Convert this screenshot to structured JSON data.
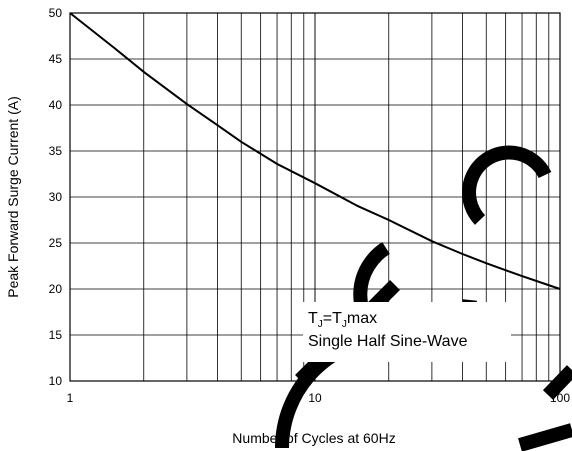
{
  "chart_data": {
    "type": "line",
    "title": "",
    "xlabel": "Number of Cycles at 60Hz",
    "ylabel": "Peak Forward Surge Current (A)",
    "xscale": "log",
    "xlim": [
      1,
      100
    ],
    "ylim": [
      10,
      50
    ],
    "x_ticks": [
      "1",
      "10",
      "100"
    ],
    "y_ticks": [
      "10",
      "15",
      "20",
      "25",
      "30",
      "35",
      "40",
      "45",
      "50"
    ],
    "grid": true,
    "series": [
      {
        "x": [
          1,
          1.5,
          2,
          3,
          4,
          5,
          7,
          10,
          15,
          20,
          30,
          40,
          50,
          70,
          100
        ],
        "y": [
          50,
          46.3,
          43.6,
          40.1,
          37.8,
          36.0,
          33.6,
          31.5,
          29.0,
          27.5,
          25.2,
          23.8,
          22.8,
          21.4,
          20.0
        ]
      }
    ],
    "annotation": {
      "line1": {
        "a": "T",
        "a_sub": "J",
        "b": "=T",
        "b_sub": "J",
        "c": "max"
      },
      "line2": "Single Half Sine-Wave"
    },
    "line_color": "#000000",
    "grid_color": "#000000"
  }
}
